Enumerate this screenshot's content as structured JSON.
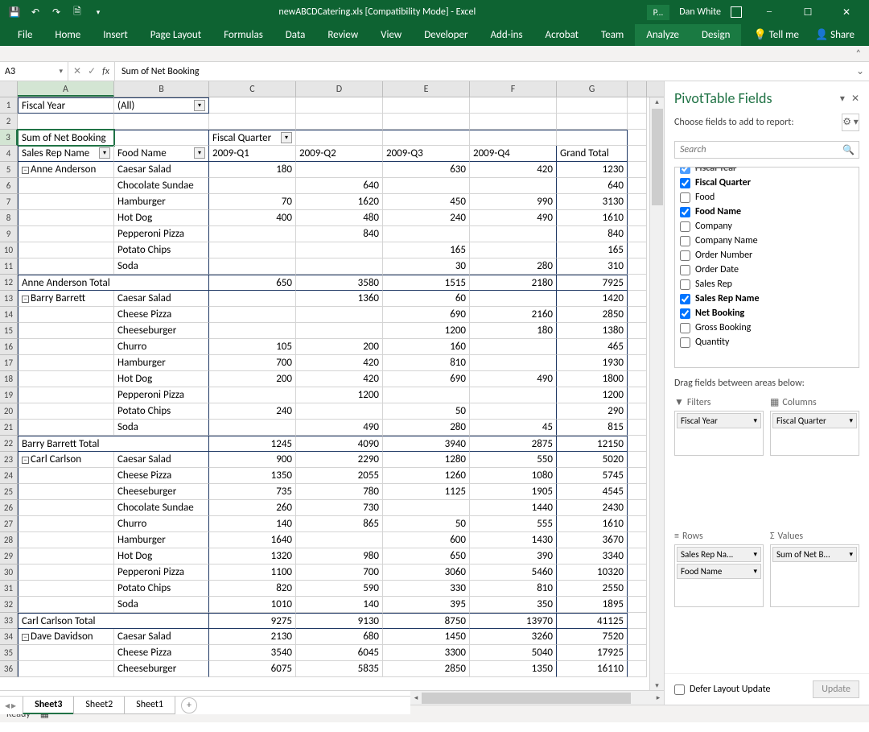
{
  "titlebar": {
    "title": "newABCDCatering.xls  [Compatibility Mode]  -  Excel",
    "p_badge": "P...",
    "user": "Dan White"
  },
  "ribbon": {
    "tabs": [
      "File",
      "Home",
      "Insert",
      "Page Layout",
      "Formulas",
      "Data",
      "Review",
      "View",
      "Developer",
      "Add-ins",
      "Acrobat",
      "Team",
      "Analyze",
      "Design"
    ],
    "active": [
      "Analyze",
      "Design"
    ],
    "tellme": "Tell me",
    "share": "Share"
  },
  "namebox": "A3",
  "formula": "Sum of Net Booking",
  "columns": [
    "A",
    "B",
    "C",
    "D",
    "E",
    "F",
    "G"
  ],
  "colWidths": {
    "A": 120,
    "B": 118,
    "C": 108,
    "D": 108,
    "E": 108,
    "F": 108,
    "G": 88,
    "H": 24
  },
  "pivot": {
    "filter_label": "Fiscal Year",
    "filter_value": "(All)",
    "measure": "Sum of Net Booking",
    "col_field": "Fiscal Quarter",
    "row_field1": "Sales Rep Name",
    "row_field2": "Food Name",
    "col_headers": [
      "2009-Q1",
      "2009-Q2",
      "2009-Q3",
      "2009-Q4",
      "Grand Total"
    ],
    "rows": [
      {
        "n": 5,
        "a": "⊟Anne Anderson",
        "b": "Caesar Salad",
        "c": "180",
        "d": "",
        "e": "630",
        "f": "420",
        "g": "1230"
      },
      {
        "n": 6,
        "a": "",
        "b": "Chocolate Sundae",
        "c": "",
        "d": "640",
        "e": "",
        "f": "",
        "g": "640"
      },
      {
        "n": 7,
        "a": "",
        "b": "Hamburger",
        "c": "70",
        "d": "1620",
        "e": "450",
        "f": "990",
        "g": "3130"
      },
      {
        "n": 8,
        "a": "",
        "b": "Hot Dog",
        "c": "400",
        "d": "480",
        "e": "240",
        "f": "490",
        "g": "1610"
      },
      {
        "n": 9,
        "a": "",
        "b": "Pepperoni Pizza",
        "c": "",
        "d": "840",
        "e": "",
        "f": "",
        "g": "840"
      },
      {
        "n": 10,
        "a": "",
        "b": "Potato Chips",
        "c": "",
        "d": "",
        "e": "165",
        "f": "",
        "g": "165"
      },
      {
        "n": 11,
        "a": "",
        "b": "Soda",
        "c": "",
        "d": "",
        "e": "30",
        "f": "280",
        "g": "310"
      },
      {
        "n": 12,
        "a": "Anne Anderson Total",
        "b": "",
        "c": "650",
        "d": "3580",
        "e": "1515",
        "f": "2180",
        "g": "7925",
        "total": true
      },
      {
        "n": 13,
        "a": "⊟Barry Barrett",
        "b": "Caesar Salad",
        "c": "",
        "d": "1360",
        "e": "60",
        "f": "",
        "g": "1420"
      },
      {
        "n": 14,
        "a": "",
        "b": "Cheese Pizza",
        "c": "",
        "d": "",
        "e": "690",
        "f": "2160",
        "g": "2850"
      },
      {
        "n": 15,
        "a": "",
        "b": "Cheeseburger",
        "c": "",
        "d": "",
        "e": "1200",
        "f": "180",
        "g": "1380"
      },
      {
        "n": 16,
        "a": "",
        "b": "Churro",
        "c": "105",
        "d": "200",
        "e": "160",
        "f": "",
        "g": "465"
      },
      {
        "n": 17,
        "a": "",
        "b": "Hamburger",
        "c": "700",
        "d": "420",
        "e": "810",
        "f": "",
        "g": "1930"
      },
      {
        "n": 18,
        "a": "",
        "b": "Hot Dog",
        "c": "200",
        "d": "420",
        "e": "690",
        "f": "490",
        "g": "1800"
      },
      {
        "n": 19,
        "a": "",
        "b": "Pepperoni Pizza",
        "c": "",
        "d": "1200",
        "e": "",
        "f": "",
        "g": "1200"
      },
      {
        "n": 20,
        "a": "",
        "b": "Potato Chips",
        "c": "240",
        "d": "",
        "e": "50",
        "f": "",
        "g": "290"
      },
      {
        "n": 21,
        "a": "",
        "b": "Soda",
        "c": "",
        "d": "490",
        "e": "280",
        "f": "45",
        "g": "815"
      },
      {
        "n": 22,
        "a": "Barry Barrett Total",
        "b": "",
        "c": "1245",
        "d": "4090",
        "e": "3940",
        "f": "2875",
        "g": "12150",
        "total": true
      },
      {
        "n": 23,
        "a": "⊟Carl Carlson",
        "b": "Caesar Salad",
        "c": "900",
        "d": "2290",
        "e": "1280",
        "f": "550",
        "g": "5020"
      },
      {
        "n": 24,
        "a": "",
        "b": "Cheese Pizza",
        "c": "1350",
        "d": "2055",
        "e": "1260",
        "f": "1080",
        "g": "5745"
      },
      {
        "n": 25,
        "a": "",
        "b": "Cheeseburger",
        "c": "735",
        "d": "780",
        "e": "1125",
        "f": "1905",
        "g": "4545"
      },
      {
        "n": 26,
        "a": "",
        "b": "Chocolate Sundae",
        "c": "260",
        "d": "730",
        "e": "",
        "f": "1440",
        "g": "2430"
      },
      {
        "n": 27,
        "a": "",
        "b": "Churro",
        "c": "140",
        "d": "865",
        "e": "50",
        "f": "555",
        "g": "1610"
      },
      {
        "n": 28,
        "a": "",
        "b": "Hamburger",
        "c": "1640",
        "d": "",
        "e": "600",
        "f": "1430",
        "g": "3670"
      },
      {
        "n": 29,
        "a": "",
        "b": "Hot Dog",
        "c": "1320",
        "d": "980",
        "e": "650",
        "f": "390",
        "g": "3340"
      },
      {
        "n": 30,
        "a": "",
        "b": "Pepperoni Pizza",
        "c": "1100",
        "d": "700",
        "e": "3060",
        "f": "5460",
        "g": "10320"
      },
      {
        "n": 31,
        "a": "",
        "b": "Potato Chips",
        "c": "820",
        "d": "590",
        "e": "330",
        "f": "810",
        "g": "2550"
      },
      {
        "n": 32,
        "a": "",
        "b": "Soda",
        "c": "1010",
        "d": "140",
        "e": "395",
        "f": "350",
        "g": "1895"
      },
      {
        "n": 33,
        "a": "Carl Carlson Total",
        "b": "",
        "c": "9275",
        "d": "9130",
        "e": "8750",
        "f": "13970",
        "g": "41125",
        "total": true
      },
      {
        "n": 34,
        "a": "⊟Dave Davidson",
        "b": "Caesar Salad",
        "c": "2130",
        "d": "680",
        "e": "1450",
        "f": "3260",
        "g": "7520"
      },
      {
        "n": 35,
        "a": "",
        "b": "Cheese Pizza",
        "c": "3540",
        "d": "6045",
        "e": "3300",
        "f": "5040",
        "g": "17925"
      },
      {
        "n": 36,
        "a": "",
        "b": "Cheeseburger",
        "c": "6075",
        "d": "5835",
        "e": "2850",
        "f": "1350",
        "g": "16110"
      }
    ]
  },
  "sheets": {
    "active": "Sheet3",
    "list": [
      "Sheet3",
      "Sheet2",
      "Sheet1"
    ]
  },
  "status": "Ready",
  "pf": {
    "title": "PivotTable Fields",
    "subtitle": "Choose fields to add to report:",
    "search_placeholder": "Search",
    "fields": [
      {
        "label": "Fiscal Year",
        "checked": true,
        "cut": true
      },
      {
        "label": "Fiscal Quarter",
        "checked": true
      },
      {
        "label": "Food",
        "checked": false
      },
      {
        "label": "Food Name",
        "checked": true
      },
      {
        "label": "Company",
        "checked": false
      },
      {
        "label": "Company Name",
        "checked": false
      },
      {
        "label": "Order Number",
        "checked": false
      },
      {
        "label": "Order Date",
        "checked": false
      },
      {
        "label": "Sales Rep",
        "checked": false
      },
      {
        "label": "Sales Rep Name",
        "checked": true
      },
      {
        "label": "Net Booking",
        "checked": true
      },
      {
        "label": "Gross Booking",
        "checked": false
      },
      {
        "label": "Quantity",
        "checked": false
      }
    ],
    "drag_label": "Drag fields between areas below:",
    "areas": {
      "filters": {
        "h": "Filters",
        "items": [
          "Fiscal Year"
        ]
      },
      "columns": {
        "h": "Columns",
        "items": [
          "Fiscal Quarter"
        ]
      },
      "rows": {
        "h": "Rows",
        "items": [
          "Sales Rep Na...",
          "Food Name"
        ]
      },
      "values": {
        "h": "Values",
        "items": [
          "Sum of Net B..."
        ]
      }
    },
    "defer": "Defer Layout Update",
    "update": "Update"
  }
}
